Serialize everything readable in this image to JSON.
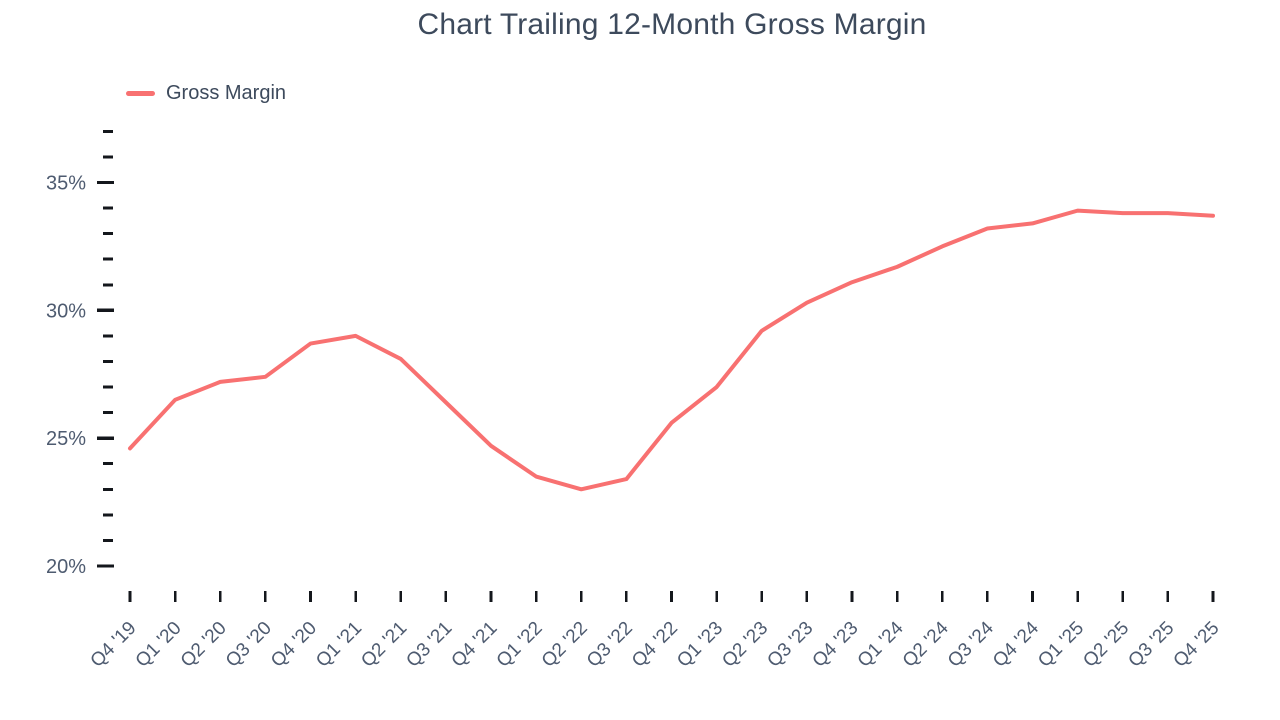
{
  "title": "Chart Trailing 12-Month Gross Margin",
  "legend": {
    "label": "Gross Margin",
    "swatch_color": "#f87171"
  },
  "colors": {
    "title_text": "#3d4a5c",
    "axis_label_text": "#4e5b70",
    "tick_mark": "#14171c",
    "series_line": "#f87171",
    "background": "#ffffff"
  },
  "chart_data": {
    "type": "line",
    "title": "Chart Trailing 12-Month Gross Margin",
    "xlabel": "",
    "ylabel": "",
    "grid": false,
    "legend_position": "top-left",
    "categories": [
      "Q4 '19",
      "Q1 '20",
      "Q2 '20",
      "Q3 '20",
      "Q4 '20",
      "Q1 '21",
      "Q2 '21",
      "Q3 '21",
      "Q4 '21",
      "Q1 '22",
      "Q2 '22",
      "Q3 '22",
      "Q4 '22",
      "Q1 '23",
      "Q2 '23",
      "Q3 '23",
      "Q4 '23",
      "Q1 '24",
      "Q2 '24",
      "Q3 '24",
      "Q4 '24",
      "Q1 '25",
      "Q2 '25",
      "Q3 '25",
      "Q4 '25"
    ],
    "series": [
      {
        "name": "Gross Margin",
        "color": "#f87171",
        "values": [
          24.6,
          26.5,
          27.2,
          27.4,
          28.7,
          29.0,
          28.1,
          26.4,
          24.7,
          23.5,
          23.0,
          23.4,
          25.6,
          27.0,
          29.2,
          30.3,
          31.1,
          31.7,
          32.5,
          33.2,
          33.4,
          33.9,
          33.8,
          33.8,
          33.7
        ]
      }
    ],
    "y_axis": {
      "min": 20,
      "max": 37,
      "unit": "%",
      "major_ticks": [
        20,
        25,
        30,
        35
      ],
      "major_tick_labels": [
        "20%",
        "25%",
        "30%",
        "35%"
      ],
      "minor_tick_step": 1
    }
  }
}
